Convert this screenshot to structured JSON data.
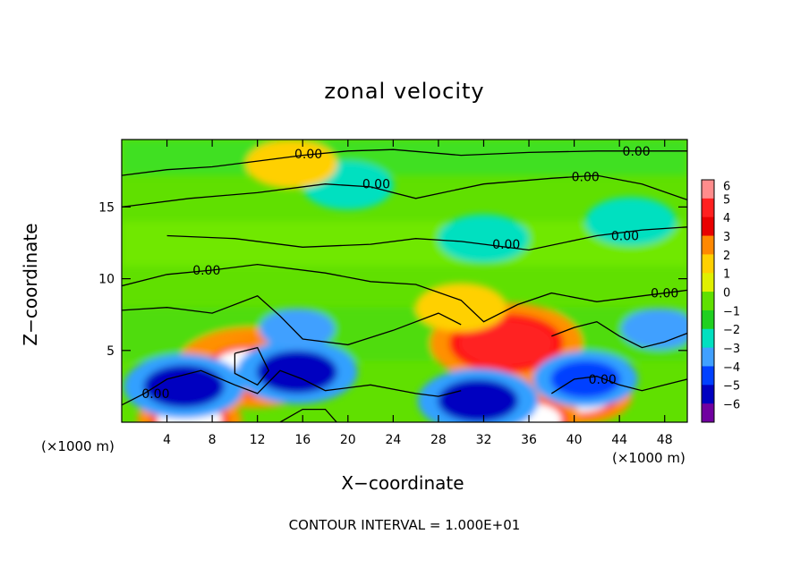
{
  "chart_data": {
    "type": "heatmap",
    "title": "zonal velocity",
    "xlabel": "X−coordinate",
    "ylabel": "Z−coordinate",
    "x_unit_left": "(×1000 m)",
    "x_unit_right": "(×1000 m)",
    "note": "CONTOUR INTERVAL = 1.000E+01",
    "xlim": [
      0,
      50
    ],
    "ylim": [
      0,
      19.7
    ],
    "x_ticks": [
      4,
      8,
      12,
      16,
      20,
      24,
      28,
      32,
      36,
      40,
      44,
      48
    ],
    "x_tick_labels": [
      "4",
      "8",
      "12",
      "16",
      "20",
      "24",
      "28",
      "32",
      "36",
      "40",
      "44",
      "48"
    ],
    "y_ticks": [
      5,
      10,
      15
    ],
    "y_tick_labels": [
      "5",
      "10",
      "15"
    ],
    "colorbar": {
      "levels": [
        6,
        5,
        4,
        3,
        2,
        1,
        0,
        -1,
        -2,
        -3,
        -4,
        -5,
        -6
      ],
      "labels": [
        "6",
        "5",
        "4",
        "3",
        "2",
        "1",
        "0",
        "−1",
        "−2",
        "−3",
        "−4",
        "−5",
        "−6"
      ],
      "colors": [
        "#ff8c8c",
        "#ff2020",
        "#e80000",
        "#ff8800",
        "#ffd000",
        "#e0f000",
        "#60e000",
        "#20d020",
        "#00e0c0",
        "#40a0ff",
        "#0040ff",
        "#0000c0",
        "#7000a0"
      ]
    },
    "contour_labels": [
      {
        "text": "0.00",
        "x": 16.5,
        "y": 18.7
      },
      {
        "text": "0.00",
        "x": 22.5,
        "y": 16.6
      },
      {
        "text": "0.00",
        "x": 41.0,
        "y": 17.1
      },
      {
        "text": "0.00",
        "x": 45.5,
        "y": 18.9
      },
      {
        "text": "0.00",
        "x": 34.0,
        "y": 12.4
      },
      {
        "text": "0.00",
        "x": 44.5,
        "y": 13.0
      },
      {
        "text": "0.00",
        "x": 7.5,
        "y": 10.6
      },
      {
        "text": "0.00",
        "x": 48.0,
        "y": 9.0
      },
      {
        "text": "0.00",
        "x": 3.0,
        "y": 2.0
      },
      {
        "text": "0.00",
        "x": 42.5,
        "y": 3.0
      }
    ],
    "field_features": [
      {
        "value": 6,
        "x": 36.0,
        "y": 4.2
      },
      {
        "value": 5,
        "x": 34.0,
        "y": 5.5
      },
      {
        "value": 5,
        "x": 11.5,
        "y": 3.8
      },
      {
        "value": 6,
        "x": 11.0,
        "y": 3.9
      },
      {
        "value": 6,
        "x": 40.5,
        "y": 1.8
      },
      {
        "value": 6,
        "x": 36.0,
        "y": 0.2
      },
      {
        "value": 6,
        "x": 6.0,
        "y": 0.2
      },
      {
        "value": -5,
        "x": 5.5,
        "y": 2.5
      },
      {
        "value": -5,
        "x": 15.5,
        "y": 3.5
      },
      {
        "value": -5,
        "x": 31.5,
        "y": 1.5
      },
      {
        "value": -4,
        "x": 41.0,
        "y": 3.0
      },
      {
        "value": -3,
        "x": 47.5,
        "y": 6.5
      },
      {
        "value": -3,
        "x": 15.5,
        "y": 6.5
      },
      {
        "value": -2,
        "x": 32.0,
        "y": 12.8
      },
      {
        "value": -2,
        "x": 20.0,
        "y": 16.5
      },
      {
        "value": -2,
        "x": 45.0,
        "y": 14.0
      },
      {
        "value": 2,
        "x": 30.0,
        "y": 8.0
      },
      {
        "value": 2,
        "x": 15.0,
        "y": 18.0
      }
    ]
  }
}
